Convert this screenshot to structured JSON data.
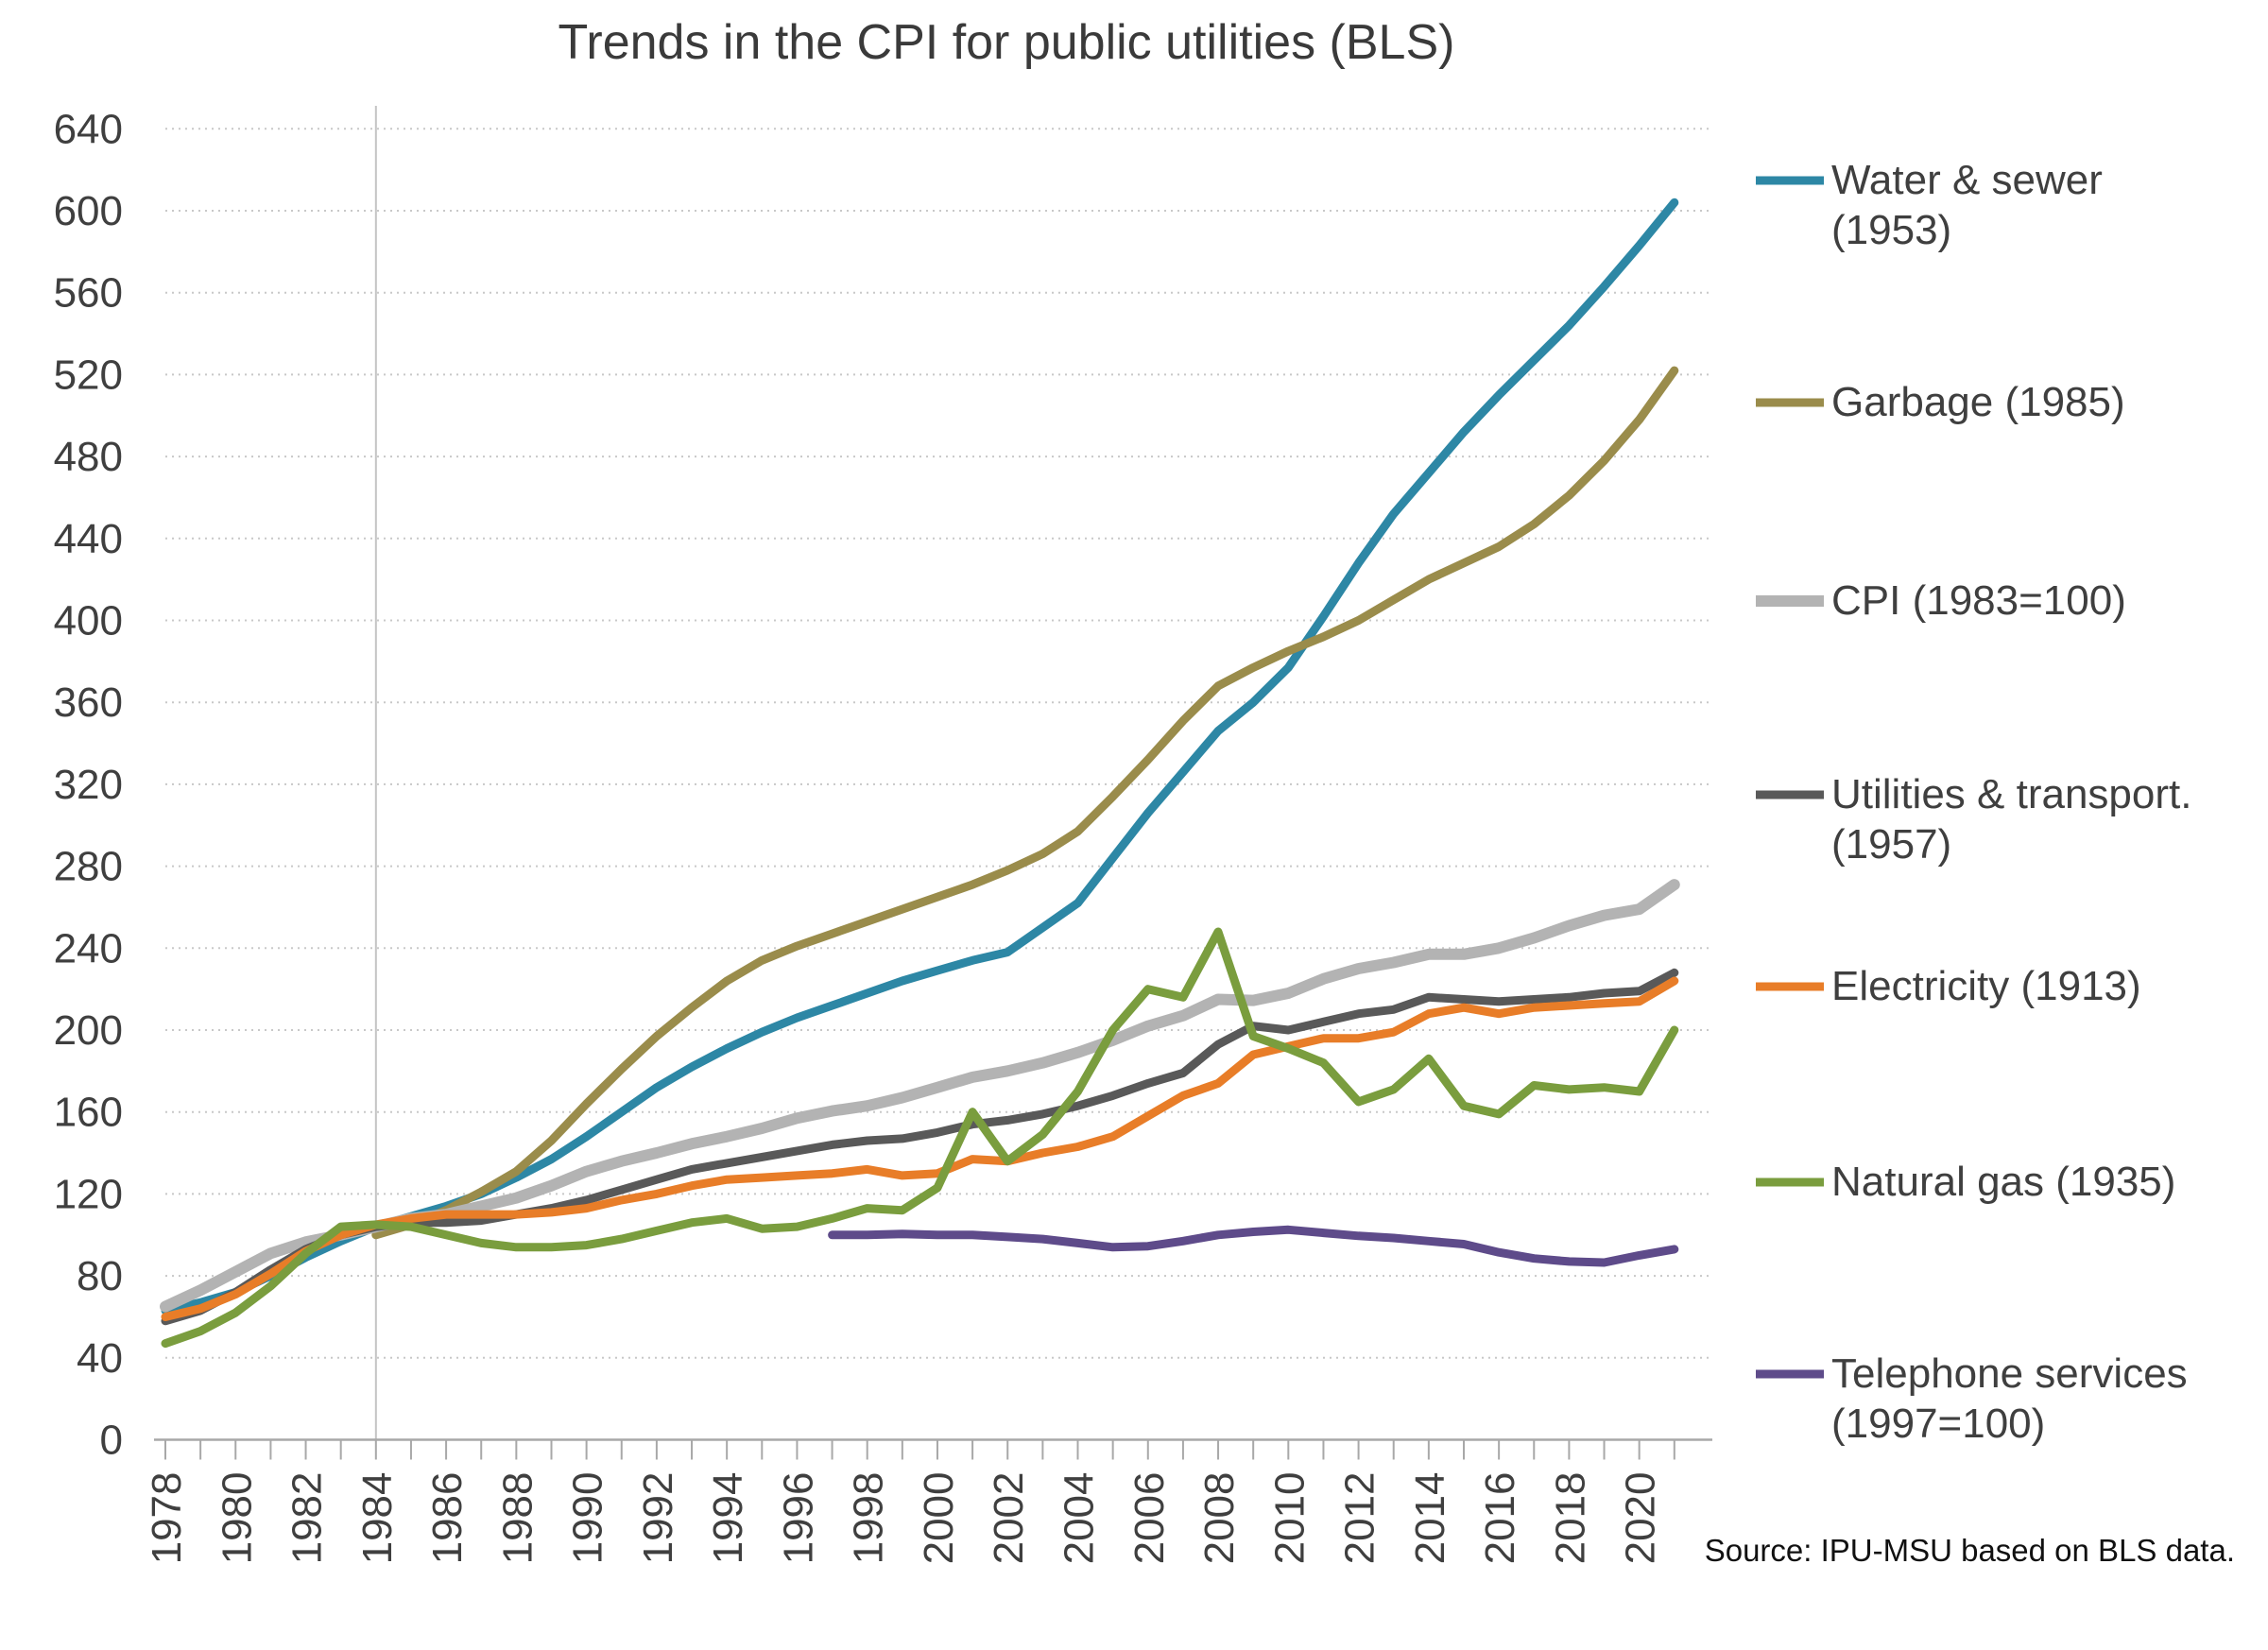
{
  "title": "Trends in the CPI for public utilities (BLS)",
  "source_note": "Source: IPU-MSU based on BLS data.",
  "chart_data": {
    "type": "line",
    "title": "Trends in the CPI for public utilities (BLS)",
    "xlabel": "",
    "ylabel": "",
    "ylim": [
      0,
      640
    ],
    "y_ticks": [
      0,
      40,
      80,
      120,
      160,
      200,
      240,
      280,
      320,
      360,
      400,
      440,
      480,
      520,
      560,
      600,
      640
    ],
    "x_tick_labels": [
      1978,
      1980,
      1982,
      1984,
      1986,
      1988,
      1990,
      1992,
      1994,
      1996,
      1998,
      2000,
      2002,
      2004,
      2006,
      2008,
      2010,
      2012,
      2014,
      2016,
      2018,
      2020
    ],
    "x_range": [
      1978,
      2021
    ],
    "reference_vertical_line_year": 1984,
    "grid": "horizontal-dotted",
    "legend_position": "right",
    "series": [
      {
        "name": "Water & sewer (1953)",
        "legend_lines": [
          "Water & sewer",
          "(1953)"
        ],
        "color": "#2d87a5",
        "stroke_width": 9,
        "start_year": 1978,
        "values": [
          63,
          67,
          72,
          80,
          89,
          97,
          104,
          109,
          114,
          120,
          128,
          137,
          148,
          160,
          172,
          182,
          191,
          199,
          206,
          212,
          218,
          224,
          229,
          234,
          238,
          250,
          262,
          284,
          306,
          326,
          346,
          360,
          377,
          402,
          428,
          452,
          472,
          492,
          510,
          527,
          544,
          563,
          583,
          604
        ]
      },
      {
        "name": "Garbage (1985)",
        "legend_lines": [
          "Garbage (1985)"
        ],
        "color": "#9a8c4b",
        "stroke_width": 9,
        "start_year": 1984,
        "values": [
          100,
          105,
          112,
          121,
          131,
          146,
          164,
          181,
          197,
          211,
          224,
          234,
          241,
          247,
          253,
          259,
          265,
          271,
          278,
          286,
          297,
          314,
          332,
          351,
          368,
          377,
          385,
          392,
          400,
          410,
          420,
          428,
          436,
          447,
          461,
          478,
          498,
          522
        ]
      },
      {
        "name": "CPI (1983=100)",
        "legend_lines": [
          "CPI (1983=100)"
        ],
        "color": "#b3b3b3",
        "stroke_width": 12,
        "start_year": 1978,
        "values": [
          65,
          73,
          82,
          91,
          96.5,
          100,
          104,
          108,
          110,
          114,
          118,
          124,
          131,
          136,
          140,
          144.5,
          148,
          152,
          157,
          160.5,
          163,
          167,
          172,
          177,
          180,
          184,
          189,
          195,
          202,
          207,
          215,
          214.5,
          218,
          225,
          230,
          233,
          237,
          237,
          240,
          245,
          251,
          256,
          259,
          271
        ]
      },
      {
        "name": "Utilities & transport. (1957)",
        "legend_lines": [
          "Utilities & transport.",
          "(1957)"
        ],
        "color": "#595959",
        "stroke_width": 9,
        "start_year": 1978,
        "values": [
          58,
          63,
          72,
          83,
          93,
          100,
          104,
          106,
          106,
          107,
          110,
          113,
          117,
          122,
          127,
          132,
          135,
          138,
          141,
          144,
          146,
          147,
          150,
          154,
          156,
          159,
          163,
          168,
          174,
          179,
          193,
          202,
          200,
          204,
          208,
          210,
          216,
          215,
          214,
          215,
          216,
          218,
          219,
          228
        ]
      },
      {
        "name": "Electricity (1913)",
        "legend_lines": [
          "Electricity (1913)"
        ],
        "color": "#e87d28",
        "stroke_width": 9,
        "start_year": 1978,
        "values": [
          60,
          64,
          71,
          81,
          92,
          100,
          105,
          108,
          110,
          110,
          110,
          111,
          113,
          117,
          120,
          124,
          127,
          128,
          129,
          130,
          132,
          129,
          130,
          137,
          136,
          140,
          143,
          148,
          158,
          168,
          174,
          188,
          192,
          196,
          196,
          199,
          208,
          211,
          208,
          211,
          212,
          213,
          214,
          224
        ]
      },
      {
        "name": "Natural gas (1935)",
        "legend_lines": [
          "Natural gas (1935)"
        ],
        "color": "#7a9d3e",
        "stroke_width": 9,
        "start_year": 1978,
        "values": [
          47,
          53,
          62,
          75,
          91,
          104,
          105,
          104,
          100,
          96,
          94,
          94,
          95,
          98,
          102,
          106,
          108,
          103,
          104,
          108,
          113,
          112,
          123,
          160,
          136,
          149,
          170,
          200,
          220,
          216,
          248,
          197,
          191,
          184,
          165,
          171,
          186,
          163,
          159,
          173,
          171,
          172,
          170,
          200
        ]
      },
      {
        "name": "Telephone services (1997=100)",
        "legend_lines": [
          "Telephone services",
          "(1997=100)"
        ],
        "color": "#5e4b8a",
        "stroke_width": 9,
        "start_year": 1997,
        "values": [
          100,
          100,
          100.5,
          100,
          100,
          99,
          98,
          96,
          94,
          94.5,
          97,
          100,
          101.5,
          102.5,
          101,
          99.5,
          98.5,
          97,
          95.5,
          91.5,
          88.5,
          87,
          86.5,
          90,
          93
        ]
      }
    ]
  }
}
